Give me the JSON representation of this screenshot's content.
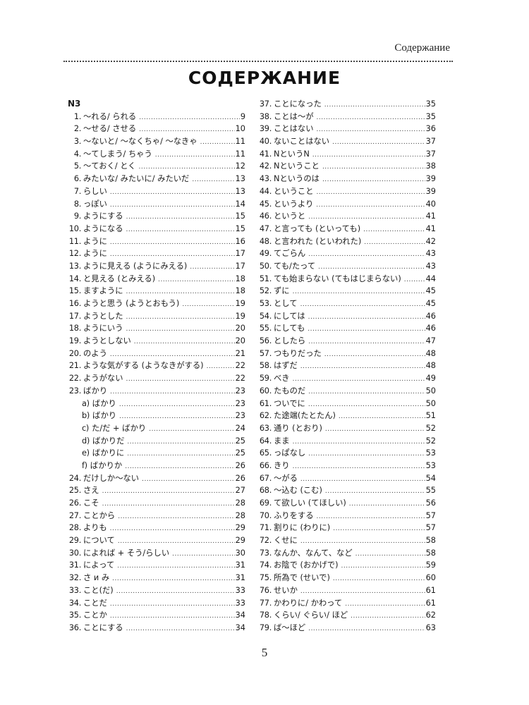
{
  "running_head": "Содержание",
  "title": "СОДЕРЖАНИЕ",
  "section": "N3",
  "left": [
    {
      "num": "1.",
      "label": "〜れる/ られる",
      "page": "9"
    },
    {
      "num": "2.",
      "label": "〜せる/ させる",
      "page": "10"
    },
    {
      "num": "3.",
      "label": "〜ないと/ 〜なくちゃ/ 〜なきゃ",
      "page": "11"
    },
    {
      "num": "4.",
      "label": "〜てしまう/ ちゃう",
      "page": "11"
    },
    {
      "num": "5.",
      "label": "〜ておく/ とく",
      "page": "12"
    },
    {
      "num": "6.",
      "label": "みたいな/ みたいに/ みたいだ",
      "page": "13"
    },
    {
      "num": "7.",
      "label": "らしい",
      "page": "13"
    },
    {
      "num": "8.",
      "label": "っぽい",
      "page": "14"
    },
    {
      "num": "9.",
      "label": "ようにする",
      "page": "15"
    },
    {
      "num": "10.",
      "label": "ようになる",
      "page": "15"
    },
    {
      "num": "11.",
      "label": "ように",
      "page": "16"
    },
    {
      "num": "12.",
      "label": "ように",
      "page": "17"
    },
    {
      "num": "13.",
      "label": "ように見える (ようにみえる)",
      "page": "17"
    },
    {
      "num": "14.",
      "label": "と見える (とみえる)",
      "page": "18"
    },
    {
      "num": "15.",
      "label": "ますように",
      "page": "18"
    },
    {
      "num": "16.",
      "label": "ようと思う (ようとおもう)",
      "page": "19"
    },
    {
      "num": "17.",
      "label": "ようとした",
      "page": "19"
    },
    {
      "num": "18.",
      "label": "ようにいう",
      "page": "20"
    },
    {
      "num": "19.",
      "label": "ようとしない",
      "page": "20"
    },
    {
      "num": "20.",
      "label": "のよう",
      "page": "21"
    },
    {
      "num": "21.",
      "label": "ような気がする (ようなきがする)",
      "page": "22"
    },
    {
      "num": "22.",
      "label": "ようがない",
      "page": "22"
    },
    {
      "num": "23.",
      "label": "ばかり",
      "page": "23"
    },
    {
      "num": "a)",
      "label": "ばかり",
      "page": "23",
      "sub": true
    },
    {
      "num": "b)",
      "label": "ばかり",
      "page": "23",
      "sub": true
    },
    {
      "num": "c)",
      "label": "た/だ + ばかり",
      "page": "24",
      "sub": true
    },
    {
      "num": "d)",
      "label": "ばかりだ",
      "page": "25",
      "sub": true
    },
    {
      "num": "e)",
      "label": "ばかりに",
      "page": "25",
      "sub": true
    },
    {
      "num": "f)",
      "label": "ばかりか",
      "page": "26",
      "sub": true
    },
    {
      "num": "24.",
      "label": "だけしか〜ない",
      "page": "26"
    },
    {
      "num": "25.",
      "label": "さえ",
      "page": "27"
    },
    {
      "num": "26.",
      "label": "こそ",
      "page": "28"
    },
    {
      "num": "27.",
      "label": "ことから",
      "page": "28"
    },
    {
      "num": "28.",
      "label": "よりも",
      "page": "29"
    },
    {
      "num": "29.",
      "label": "について",
      "page": "29"
    },
    {
      "num": "30.",
      "label": "によれば + そう/らしい",
      "page": "30"
    },
    {
      "num": "31.",
      "label": "によって",
      "page": "31"
    },
    {
      "num": "32.",
      "label": "さ и み",
      "page": "31"
    },
    {
      "num": "33.",
      "label": "こと(だ)",
      "page": "33"
    },
    {
      "num": "34.",
      "label": "ことだ",
      "page": "33"
    },
    {
      "num": "35.",
      "label": "ことか",
      "page": "34"
    },
    {
      "num": "36.",
      "label": "ことにする",
      "page": "34"
    }
  ],
  "right": [
    {
      "num": "37.",
      "label": "ことになった",
      "page": "35"
    },
    {
      "num": "38.",
      "label": "ことは〜が",
      "page": "35"
    },
    {
      "num": "39.",
      "label": "ことはない",
      "page": "36"
    },
    {
      "num": "40.",
      "label": "ないことはない",
      "page": "37"
    },
    {
      "num": "41.",
      "label": "NというN",
      "page": "37"
    },
    {
      "num": "42.",
      "label": "Nということ",
      "page": "38"
    },
    {
      "num": "43.",
      "label": "Nというのは",
      "page": "39"
    },
    {
      "num": "44.",
      "label": "ということ",
      "page": "39"
    },
    {
      "num": "45.",
      "label": "というより",
      "page": "40"
    },
    {
      "num": "46.",
      "label": "というと",
      "page": "41"
    },
    {
      "num": "47.",
      "label": "と言っても (といっても)",
      "page": "41"
    },
    {
      "num": "48.",
      "label": "と言われた (といわれた)",
      "page": "42"
    },
    {
      "num": "49.",
      "label": "てごらん",
      "page": "43"
    },
    {
      "num": "50.",
      "label": "ても/たって",
      "page": "43"
    },
    {
      "num": "51.",
      "label": "ても始まらない (てもはじまらない)",
      "page": "44"
    },
    {
      "num": "52.",
      "label": "ずに",
      "page": "45"
    },
    {
      "num": "53.",
      "label": "として",
      "page": "45"
    },
    {
      "num": "54.",
      "label": "にしては",
      "page": "46"
    },
    {
      "num": "55.",
      "label": "にしても",
      "page": "46"
    },
    {
      "num": "56.",
      "label": "としたら",
      "page": "47"
    },
    {
      "num": "57.",
      "label": "つもりだった",
      "page": "48"
    },
    {
      "num": "58.",
      "label": "はずだ",
      "page": "48"
    },
    {
      "num": "59.",
      "label": "べき",
      "page": "49"
    },
    {
      "num": "60.",
      "label": "たものだ",
      "page": "50"
    },
    {
      "num": "61.",
      "label": "ついでに",
      "page": "50"
    },
    {
      "num": "62.",
      "label": "た途端(たとたん)",
      "page": "51"
    },
    {
      "num": "63.",
      "label": "通り (とおり)",
      "page": "52"
    },
    {
      "num": "64.",
      "label": "まま",
      "page": "52"
    },
    {
      "num": "65.",
      "label": "っぱなし",
      "page": "53"
    },
    {
      "num": "66.",
      "label": "きり",
      "page": "53"
    },
    {
      "num": "67.",
      "label": "〜がる",
      "page": "54"
    },
    {
      "num": "68.",
      "label": "〜込む (こむ)",
      "page": "55"
    },
    {
      "num": "69.",
      "label": "て欲しい (てほしい)",
      "page": "56"
    },
    {
      "num": "70.",
      "label": "ふりをする",
      "page": "57"
    },
    {
      "num": "71.",
      "label": "割りに (わりに)",
      "page": "57"
    },
    {
      "num": "72.",
      "label": "くせに",
      "page": "58"
    },
    {
      "num": "73.",
      "label": "なんか、なんて、など",
      "page": "58"
    },
    {
      "num": "74.",
      "label": "お陰で (おかげで)",
      "page": "59"
    },
    {
      "num": "75.",
      "label": "所為で (せいで)",
      "page": "60"
    },
    {
      "num": "76.",
      "label": "せいか",
      "page": "61"
    },
    {
      "num": "77.",
      "label": "かわりに/ かわって",
      "page": "61"
    },
    {
      "num": "78.",
      "label": "くらい/ ぐらい/ ほど",
      "page": "62"
    },
    {
      "num": "79.",
      "label": "ば〜ほど",
      "page": "63"
    }
  ],
  "folio": "5"
}
